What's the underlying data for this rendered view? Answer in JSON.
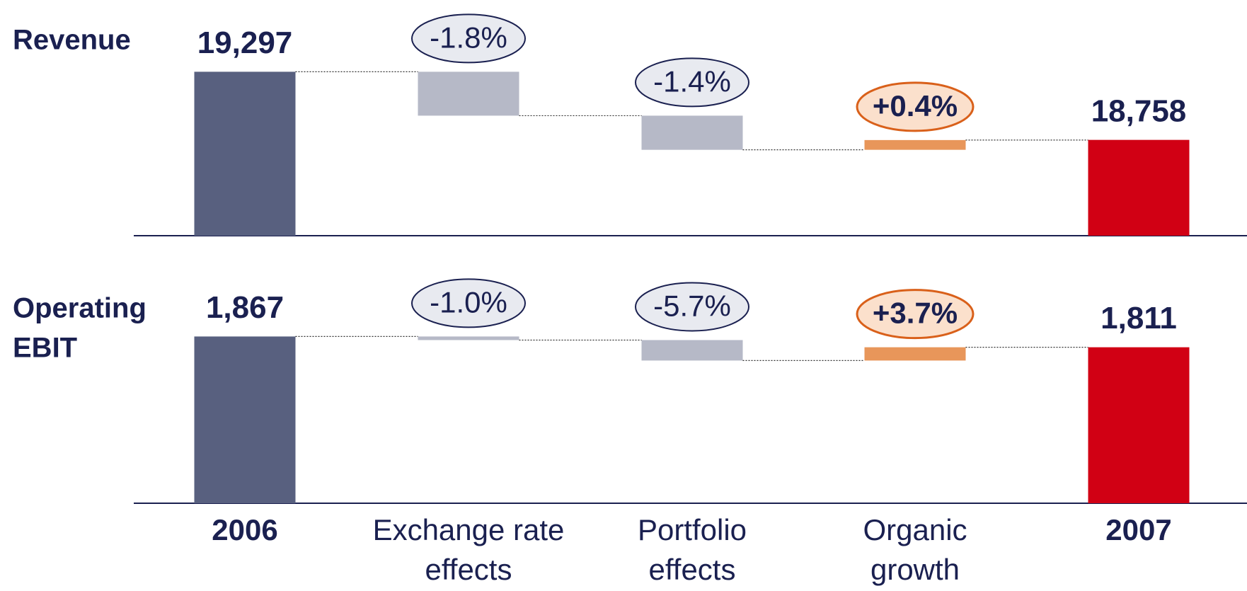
{
  "categories": [
    [
      "2006"
    ],
    [
      "Exchange rate",
      "effects"
    ],
    [
      "Portfolio",
      "effects"
    ],
    [
      "Organic",
      "growth"
    ],
    [
      "2007"
    ]
  ],
  "chart_data": [
    {
      "type": "waterfall",
      "title": [
        "Revenue"
      ],
      "values": [
        19297,
        -1.8,
        -1.4,
        0.4,
        18758
      ],
      "value_labels": [
        "19,297",
        "-1.8%",
        "-1.4%",
        "+0.4%",
        "18,758"
      ],
      "ylim": [
        18000,
        19400
      ],
      "colors": {
        "start": "#58607f",
        "decrease": "#b6b9c7",
        "increase": "#e8965a",
        "end": "#d10014"
      }
    },
    {
      "type": "waterfall",
      "title": [
        "Operating",
        "EBIT"
      ],
      "values": [
        1867,
        -1.0,
        -5.7,
        3.7,
        1811
      ],
      "value_labels": [
        "1,867",
        "-1.0%",
        "-5.7%",
        "+3.7%",
        "1,811"
      ],
      "ylim": [
        1000,
        1920
      ],
      "colors": {
        "start": "#58607f",
        "decrease": "#b6b9c7",
        "increase": "#e8965a",
        "end": "#d10014"
      }
    }
  ]
}
